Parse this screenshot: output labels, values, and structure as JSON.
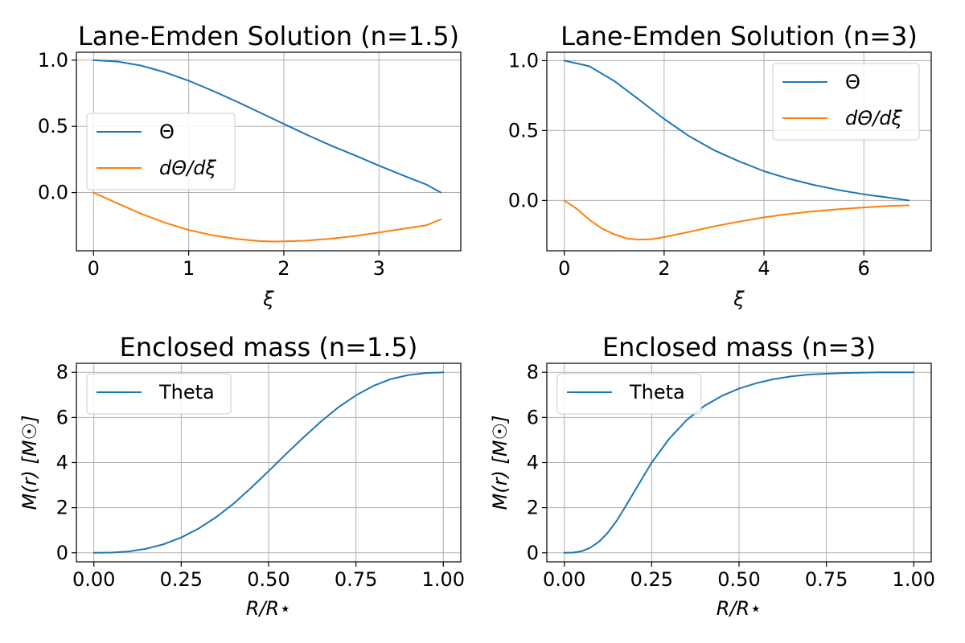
{
  "chart_data": [
    {
      "type": "line",
      "title": "Lane-Emden  Solution (n=1.5)",
      "xlabel": "ξ",
      "ylabel": "",
      "xlim": [
        -0.18,
        3.86
      ],
      "ylim": [
        -0.44,
        1.06
      ],
      "xticks": [
        0,
        1,
        2,
        3
      ],
      "xtick_labels": [
        "0",
        "1",
        "2",
        "3"
      ],
      "yticks": [
        0,
        0.5,
        1.0
      ],
      "ytick_labels": [
        "0.0",
        "0.5",
        "1.0"
      ],
      "grid": true,
      "legend": "center-left",
      "series": [
        {
          "name": "Θ",
          "color": "#1f77b4",
          "x": [
            0,
            0.25,
            0.5,
            0.75,
            1.0,
            1.25,
            1.5,
            1.75,
            2.0,
            2.25,
            2.5,
            2.75,
            3.0,
            3.25,
            3.5,
            3.65
          ],
          "y": [
            1.0,
            0.99,
            0.959,
            0.909,
            0.845,
            0.77,
            0.689,
            0.604,
            0.518,
            0.434,
            0.354,
            0.28,
            0.203,
            0.13,
            0.06,
            0.0
          ]
        },
        {
          "name": "dΘ/dξ",
          "color": "#ff7f0e",
          "x": [
            0,
            0.25,
            0.5,
            0.75,
            1.0,
            1.25,
            1.5,
            1.75,
            1.9,
            2.0,
            2.25,
            2.5,
            2.75,
            3.0,
            3.25,
            3.5,
            3.65
          ],
          "y": [
            0.0,
            -0.082,
            -0.16,
            -0.228,
            -0.283,
            -0.323,
            -0.35,
            -0.367,
            -0.37,
            -0.369,
            -0.363,
            -0.348,
            -0.328,
            -0.302,
            -0.275,
            -0.247,
            -0.203
          ]
        }
      ]
    },
    {
      "type": "line",
      "title": "Lane-Emden  Solution (n=3)",
      "xlabel": "ξ",
      "ylabel": "",
      "xlim": [
        -0.35,
        7.35
      ],
      "ylim": [
        -0.36,
        1.06
      ],
      "xticks": [
        0,
        2,
        4,
        6
      ],
      "xtick_labels": [
        "0",
        "2",
        "4",
        "6"
      ],
      "yticks": [
        0,
        0.5,
        1.0
      ],
      "ytick_labels": [
        "0.0",
        "0.5",
        "1.0"
      ],
      "grid": true,
      "legend": "top-right",
      "series": [
        {
          "name": "Θ",
          "color": "#1f77b4",
          "x": [
            0,
            0.5,
            1.0,
            1.5,
            2.0,
            2.5,
            3.0,
            3.5,
            4.0,
            4.5,
            5.0,
            5.5,
            6.0,
            6.5,
            6.9
          ],
          "y": [
            1.0,
            0.96,
            0.855,
            0.72,
            0.583,
            0.46,
            0.359,
            0.28,
            0.209,
            0.155,
            0.111,
            0.074,
            0.044,
            0.02,
            0.0
          ]
        },
        {
          "name": "dΘ/dξ",
          "color": "#ff7f0e",
          "x": [
            0,
            0.25,
            0.5,
            0.75,
            1.0,
            1.25,
            1.5,
            1.75,
            2.0,
            2.5,
            3.0,
            3.5,
            4.0,
            4.5,
            5.0,
            5.5,
            6.0,
            6.5,
            6.9
          ],
          "y": [
            0.0,
            -0.06,
            -0.138,
            -0.2,
            -0.242,
            -0.272,
            -0.28,
            -0.277,
            -0.262,
            -0.225,
            -0.185,
            -0.152,
            -0.121,
            -0.097,
            -0.078,
            -0.062,
            -0.05,
            -0.04,
            -0.035
          ]
        }
      ]
    },
    {
      "type": "line",
      "title": "Enclosed mass (n=1.5)",
      "xlabel": "R/R⋆",
      "ylabel": "M(r) [M☉]",
      "xlim": [
        -0.05,
        1.05
      ],
      "ylim": [
        -0.4,
        8.4
      ],
      "xticks": [
        0,
        0.25,
        0.5,
        0.75,
        1.0
      ],
      "xtick_labels": [
        "0.00",
        "0.25",
        "0.50",
        "0.75",
        "1.00"
      ],
      "yticks": [
        0,
        2,
        4,
        6,
        8
      ],
      "ytick_labels": [
        "0",
        "2",
        "4",
        "6",
        "8"
      ],
      "grid": true,
      "legend": "top-left",
      "series": [
        {
          "name": "Theta",
          "color": "#1f77b4",
          "x": [
            0,
            0.05,
            0.1,
            0.15,
            0.2,
            0.25,
            0.3,
            0.35,
            0.4,
            0.45,
            0.5,
            0.55,
            0.6,
            0.65,
            0.7,
            0.75,
            0.8,
            0.85,
            0.9,
            0.95,
            1.0
          ],
          "y": [
            0.0,
            0.01,
            0.06,
            0.18,
            0.38,
            0.68,
            1.08,
            1.58,
            2.18,
            2.88,
            3.62,
            4.38,
            5.12,
            5.82,
            6.45,
            6.98,
            7.4,
            7.7,
            7.88,
            7.97,
            8.0
          ]
        }
      ]
    },
    {
      "type": "line",
      "title": "Enclosed mass (n=3)",
      "xlabel": "R/R⋆",
      "ylabel": "M(r) [M☉]",
      "xlim": [
        -0.05,
        1.05
      ],
      "ylim": [
        -0.4,
        8.4
      ],
      "xticks": [
        0,
        0.25,
        0.5,
        0.75,
        1.0
      ],
      "xtick_labels": [
        "0.00",
        "0.25",
        "0.50",
        "0.75",
        "1.00"
      ],
      "yticks": [
        0,
        2,
        4,
        6,
        8
      ],
      "ytick_labels": [
        "0",
        "2",
        "4",
        "6",
        "8"
      ],
      "grid": true,
      "legend": "top-left",
      "series": [
        {
          "name": "Theta",
          "color": "#1f77b4",
          "x": [
            0,
            0.025,
            0.05,
            0.075,
            0.1,
            0.125,
            0.15,
            0.175,
            0.2,
            0.225,
            0.25,
            0.3,
            0.35,
            0.4,
            0.45,
            0.5,
            0.55,
            0.6,
            0.65,
            0.7,
            0.8,
            0.9,
            1.0
          ],
          "y": [
            0.0,
            0.01,
            0.07,
            0.23,
            0.5,
            0.9,
            1.42,
            2.05,
            2.7,
            3.35,
            4.0,
            5.05,
            5.88,
            6.5,
            6.95,
            7.28,
            7.52,
            7.7,
            7.82,
            7.9,
            7.97,
            8.0,
            8.0
          ]
        }
      ]
    }
  ]
}
